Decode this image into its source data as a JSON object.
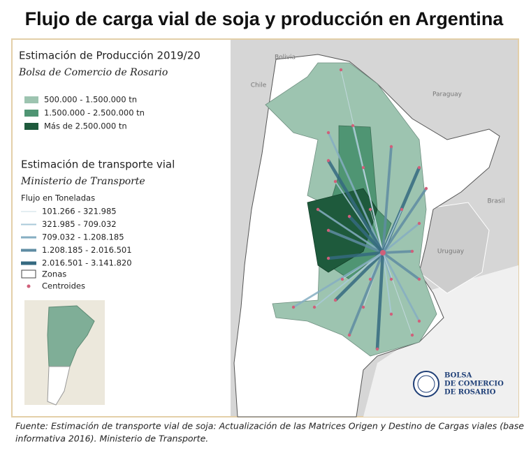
{
  "title": "Flujo de carga vial de soja y producción en Argentina",
  "production_legend": {
    "title": "Estimación de Producción 2019/20",
    "source": "Bolsa de Comercio de Rosario",
    "items": [
      {
        "label": "500.000 - 1.500.000 tn",
        "color": "#9dc4b0"
      },
      {
        "label": "1.500.000 - 2.500.000 tn",
        "color": "#4f9573"
      },
      {
        "label": "Más de 2.500.000 tn",
        "color": "#1e5a3c"
      }
    ]
  },
  "transport_legend": {
    "title": "Estimación de transporte vial",
    "source": "Ministerio de Transporte",
    "subtitle": "Flujo en Toneladas",
    "items": [
      {
        "label": "101.266 - 321.985",
        "color": "#c9dde6"
      },
      {
        "label": "321.985 - 709.032",
        "color": "#a9cad9"
      },
      {
        "label": "709.032 - 1.208.185",
        "color": "#86aec2"
      },
      {
        "label": "1.208.185 - 2.016.501",
        "color": "#5f8ca3"
      },
      {
        "label": "2.016.501 - 3.141.820",
        "color": "#356a80"
      }
    ],
    "zones_label": "Zonas",
    "centroids_label": "Centroides",
    "centroid_color": "#d0607a"
  },
  "country_labels": {
    "bolivia": "Bolivia",
    "chile": "Chile",
    "paraguay": "Paraguay",
    "brasil": "Brasil",
    "uruguay": "Uruguay"
  },
  "logo": [
    "BOLSA",
    "DE COMERCIO",
    "DE ROSARIO"
  ],
  "footnote": [
    "Fuente: Estimación de transporte vial de soja: Actualización de las Matrices Origen y Destino de Cargas viales (base",
    "informativa 2016). Ministerio de Transporte."
  ]
}
